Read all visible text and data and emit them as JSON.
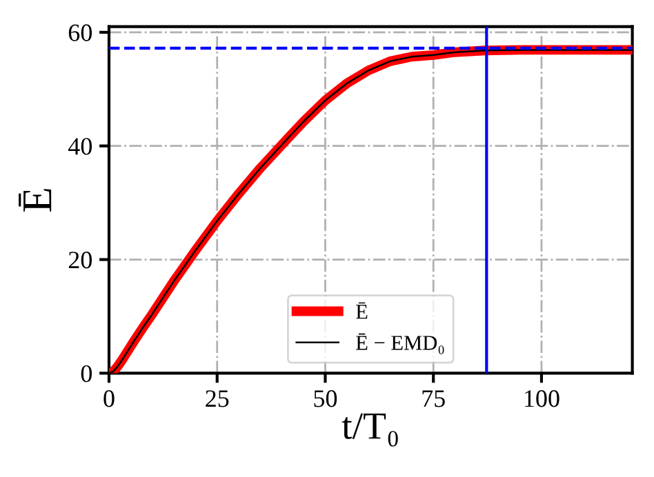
{
  "chart_data": {
    "type": "line",
    "xlabel": "t/T₀",
    "ylabel": "Ē",
    "x": [
      0,
      1,
      2,
      3,
      4,
      6,
      8,
      10,
      15,
      20,
      25,
      30,
      35,
      41.3,
      45,
      50,
      55,
      60,
      65,
      70,
      75,
      80,
      87,
      95,
      105,
      121
    ],
    "series": [
      {
        "name": "Ē",
        "color": "#ff0000",
        "values": [
          0,
          0.3,
          1.2,
          2.3,
          3.5,
          5.9,
          8.2,
          10.4,
          16.2,
          21.6,
          26.8,
          31.6,
          36.1,
          41.3,
          44.3,
          48.0,
          51.0,
          53.3,
          54.9,
          55.7,
          56.0,
          56.5,
          56.8,
          56.9,
          56.9,
          56.9
        ]
      },
      {
        "name": "Ē − EMD₀",
        "color": "#000000",
        "values": [
          0,
          0.3,
          1.2,
          2.3,
          3.5,
          5.9,
          8.2,
          10.4,
          16.2,
          21.6,
          26.8,
          31.6,
          36.1,
          41.3,
          44.3,
          48.0,
          51.0,
          53.3,
          54.9,
          55.7,
          56.0,
          56.5,
          56.8,
          56.9,
          56.9,
          56.9
        ]
      }
    ],
    "xlim": [
      0,
      121
    ],
    "ylim": [
      0,
      61
    ],
    "xticks": [
      0,
      25,
      50,
      75,
      100
    ],
    "yticks": [
      0,
      20,
      40,
      60
    ],
    "ref_lines": [
      {
        "axis": "y",
        "value": 57.2,
        "color": "#0000ff",
        "line_style": "dashed"
      },
      {
        "axis": "x",
        "value": 87.3,
        "color": "#0000ff",
        "line_style": "solid"
      }
    ],
    "grid": true,
    "legend": "bottom",
    "marker": "none",
    "line_style": "solid"
  }
}
